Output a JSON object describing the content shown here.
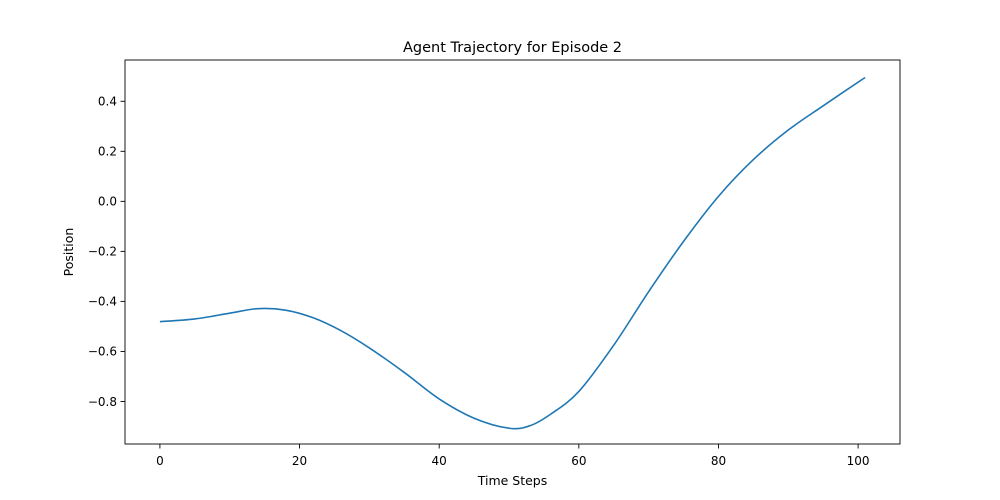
{
  "chart_data": {
    "type": "line",
    "title": "Agent Trajectory for Episode 2",
    "xlabel": "Time Steps",
    "ylabel": "Position",
    "xlim": [
      -5,
      106
    ],
    "ylim": [
      -0.97,
      0.565
    ],
    "grid": false,
    "xticks": [
      0,
      20,
      40,
      60,
      80,
      100
    ],
    "xtick_labels": [
      "0",
      "20",
      "40",
      "60",
      "80",
      "100"
    ],
    "yticks": [
      -0.8,
      -0.6,
      -0.4,
      -0.2,
      0.0,
      0.2,
      0.4
    ],
    "ytick_labels": [
      "−0.8",
      "−0.6",
      "−0.4",
      "−0.2",
      "0.0",
      "0.2",
      "0.4"
    ],
    "series": [
      {
        "color": "#1f77b4",
        "x": [
          0,
          5,
          10,
          14,
          18,
          22,
          26,
          30,
          35,
          40,
          45,
          50,
          53,
          56,
          60,
          65,
          70,
          75,
          80,
          85,
          90,
          95,
          101
        ],
        "y": [
          -0.481,
          -0.47,
          -0.447,
          -0.429,
          -0.435,
          -0.466,
          -0.518,
          -0.586,
          -0.684,
          -0.79,
          -0.867,
          -0.907,
          -0.897,
          -0.85,
          -0.76,
          -0.575,
          -0.361,
          -0.16,
          0.02,
          0.167,
          0.285,
          0.382,
          0.495
        ]
      }
    ]
  }
}
